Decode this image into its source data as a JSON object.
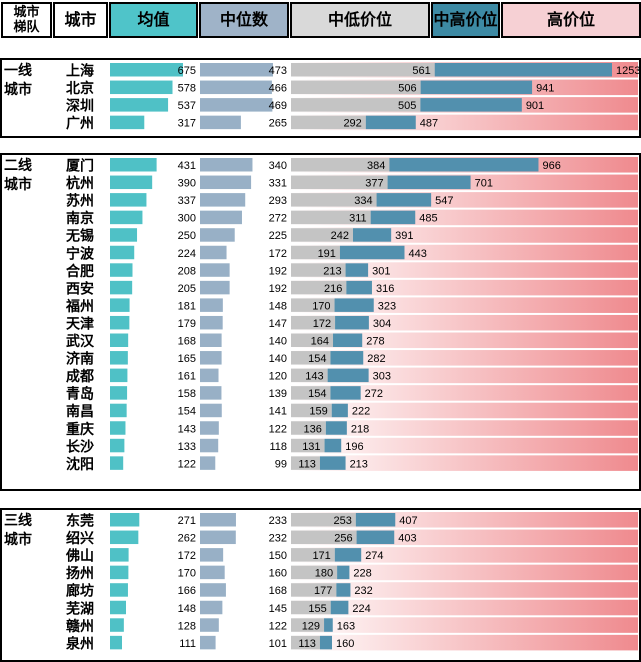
{
  "headers": {
    "tier": "城市\n梯队",
    "city": "城市",
    "mean": "均值",
    "median": "中位数",
    "midlow": "中低价位",
    "midhigh": "中高价位",
    "high": "高价位"
  },
  "colors": {
    "mean_header": "#4fc4c9",
    "median_header": "#9fb3c8",
    "midlow_header": "#d9d9d9",
    "midhigh_header": "#3d8aa4",
    "high_header": "#f6d0d4",
    "mean_bar": "#4fc1c6",
    "median_bar": "#98b0c6",
    "midlow_bar": "#c4c4c4",
    "midhigh_bar": "#5290ae",
    "high_start": "#ffffff",
    "high_end": "#ef8a8e"
  },
  "chart_data": {
    "type": "table",
    "scales": {
      "mean_max": 675,
      "median_max": 473,
      "price_max": 1253
    },
    "groups": [
      {
        "tier": "一线\n城市",
        "cities": [
          {
            "name": "上海",
            "mean": 675,
            "median": 473,
            "midlow": 561,
            "midhigh": 1253
          },
          {
            "name": "北京",
            "mean": 578,
            "median": 466,
            "midlow": 506,
            "midhigh": 941
          },
          {
            "name": "深圳",
            "mean": 537,
            "median": 469,
            "midlow": 505,
            "midhigh": 901
          },
          {
            "name": "广州",
            "mean": 317,
            "median": 265,
            "midlow": 292,
            "midhigh": 487
          }
        ]
      },
      {
        "tier": "二线\n城市",
        "cities": [
          {
            "name": "厦门",
            "mean": 431,
            "median": 340,
            "midlow": 384,
            "midhigh": 966
          },
          {
            "name": "杭州",
            "mean": 390,
            "median": 331,
            "midlow": 377,
            "midhigh": 701
          },
          {
            "name": "苏州",
            "mean": 337,
            "median": 293,
            "midlow": 334,
            "midhigh": 547
          },
          {
            "name": "南京",
            "mean": 300,
            "median": 272,
            "midlow": 311,
            "midhigh": 485
          },
          {
            "name": "无锡",
            "mean": 250,
            "median": 225,
            "midlow": 242,
            "midhigh": 391
          },
          {
            "name": "宁波",
            "mean": 224,
            "median": 172,
            "midlow": 191,
            "midhigh": 443
          },
          {
            "name": "合肥",
            "mean": 208,
            "median": 192,
            "midlow": 213,
            "midhigh": 301
          },
          {
            "name": "西安",
            "mean": 205,
            "median": 192,
            "midlow": 216,
            "midhigh": 316
          },
          {
            "name": "福州",
            "mean": 181,
            "median": 148,
            "midlow": 170,
            "midhigh": 323
          },
          {
            "name": "天津",
            "mean": 179,
            "median": 147,
            "midlow": 172,
            "midhigh": 304
          },
          {
            "name": "武汉",
            "mean": 168,
            "median": 140,
            "midlow": 164,
            "midhigh": 278
          },
          {
            "name": "济南",
            "mean": 165,
            "median": 140,
            "midlow": 154,
            "midhigh": 282
          },
          {
            "name": "成都",
            "mean": 161,
            "median": 120,
            "midlow": 143,
            "midhigh": 303
          },
          {
            "name": "青岛",
            "mean": 158,
            "median": 139,
            "midlow": 154,
            "midhigh": 272
          },
          {
            "name": "南昌",
            "mean": 154,
            "median": 141,
            "midlow": 159,
            "midhigh": 222
          },
          {
            "name": "重庆",
            "mean": 143,
            "median": 122,
            "midlow": 136,
            "midhigh": 218
          },
          {
            "name": "长沙",
            "mean": 133,
            "median": 118,
            "midlow": 131,
            "midhigh": 196
          },
          {
            "name": "沈阳",
            "mean": 122,
            "median": 99,
            "midlow": 113,
            "midhigh": 213
          }
        ]
      },
      {
        "tier": "三线\n城市",
        "cities": [
          {
            "name": "东莞",
            "mean": 271,
            "median": 233,
            "midlow": 253,
            "midhigh": 407
          },
          {
            "name": "绍兴",
            "mean": 262,
            "median": 232,
            "midlow": 256,
            "midhigh": 403
          },
          {
            "name": "佛山",
            "mean": 172,
            "median": 150,
            "midlow": 171,
            "midhigh": 274
          },
          {
            "name": "扬州",
            "mean": 170,
            "median": 160,
            "midlow": 180,
            "midhigh": 228
          },
          {
            "name": "廊坊",
            "mean": 166,
            "median": 168,
            "midlow": 177,
            "midhigh": 232
          },
          {
            "name": "芜湖",
            "mean": 148,
            "median": 145,
            "midlow": 155,
            "midhigh": 224
          },
          {
            "name": "赣州",
            "mean": 128,
            "median": 122,
            "midlow": 129,
            "midhigh": 163
          },
          {
            "name": "泉州",
            "mean": 111,
            "median": 101,
            "midlow": 113,
            "midhigh": 160
          }
        ]
      }
    ]
  }
}
